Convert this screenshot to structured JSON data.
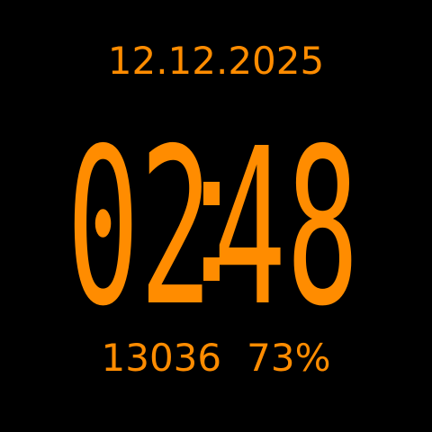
{
  "watchface": {
    "date": "12.12.2025",
    "time": {
      "hours": "02",
      "separator": ":",
      "minutes": "48"
    },
    "steps": "13036",
    "battery": "73%",
    "accent_color": "#FF8C00",
    "background_color": "#000000"
  }
}
